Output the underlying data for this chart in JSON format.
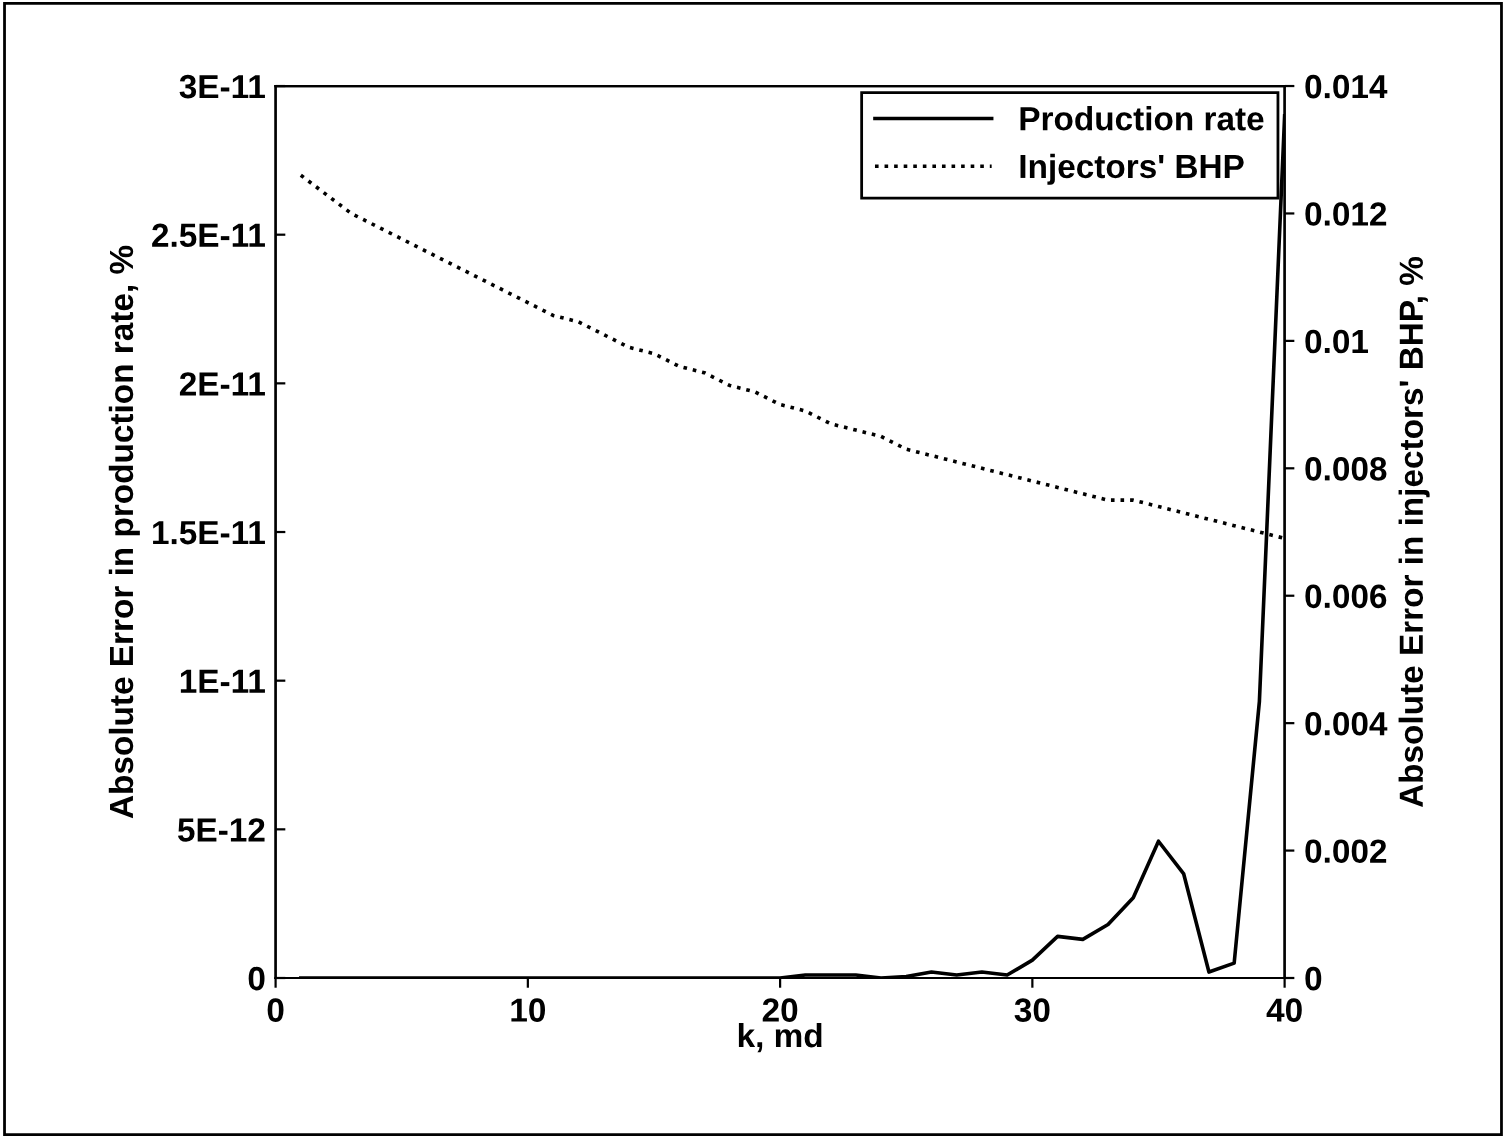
{
  "chart_data": {
    "type": "line",
    "xlabel": "k, md",
    "ylabel": "Absolute Error in production rate, %",
    "y2label": "Absolute Error in injectors' BHP, %",
    "xlim": [
      0,
      40
    ],
    "xticks": [
      0,
      10,
      20,
      30,
      40
    ],
    "ylim": [
      0,
      3e-11
    ],
    "yticks": [
      {
        "value": 0,
        "label": "0"
      },
      {
        "value": 5e-12,
        "label": "5E-12"
      },
      {
        "value": 1e-11,
        "label": "1E-11"
      },
      {
        "value": 1.5e-11,
        "label": "1.5E-11"
      },
      {
        "value": 2e-11,
        "label": "2E-11"
      },
      {
        "value": 2.5e-11,
        "label": "2.5E-11"
      },
      {
        "value": 3e-11,
        "label": "3E-11"
      }
    ],
    "y2lim": [
      0,
      0.014
    ],
    "y2ticks": [
      0,
      0.002,
      0.004,
      0.006,
      0.008,
      0.01,
      0.012,
      0.014
    ],
    "x": [
      1,
      2,
      3,
      4,
      5,
      6,
      7,
      8,
      9,
      10,
      11,
      12,
      13,
      14,
      15,
      16,
      17,
      18,
      19,
      20,
      21,
      22,
      23,
      24,
      25,
      26,
      27,
      28,
      29,
      30,
      31,
      32,
      33,
      34,
      35,
      36,
      37,
      38,
      39,
      40
    ],
    "legend": "top right",
    "grid": false,
    "series": [
      {
        "name": "Production rate",
        "color": "#000000",
        "line_style": "solid",
        "values": [
          0,
          0,
          0,
          0,
          0,
          0,
          0,
          0,
          0,
          0,
          0,
          0,
          0,
          0,
          0,
          0,
          0,
          0,
          0,
          0,
          1e-13,
          1e-13,
          1e-13,
          0,
          5e-14,
          2e-13,
          1e-13,
          2e-13,
          1e-13,
          6e-13,
          1.4e-12,
          1.3e-12,
          1.8e-12,
          2.7e-12,
          4.6e-12,
          3.5e-12,
          2e-13,
          5e-13,
          9.3e-12,
          2.9e-11
        ]
      },
      {
        "name": "Injectors' BHP",
        "color": "#000000",
        "line_style": "dotted",
        "axis": "y2",
        "values": [
          0.0126,
          0.0123,
          0.012,
          0.0118,
          0.0116,
          0.0114,
          0.0112,
          0.011,
          0.0108,
          0.0106,
          0.0104,
          0.0103,
          0.0101,
          0.0099,
          0.0098,
          0.0096,
          0.0095,
          0.0093,
          0.0092,
          0.009,
          0.0089,
          0.0087,
          0.0086,
          0.0085,
          0.0083,
          0.0082,
          0.0081,
          0.008,
          0.0079,
          0.0078,
          0.0077,
          0.0076,
          0.0075,
          0.0075,
          0.0074,
          0.0073,
          0.0072,
          0.0071,
          0.007,
          0.0069
        ]
      }
    ]
  }
}
